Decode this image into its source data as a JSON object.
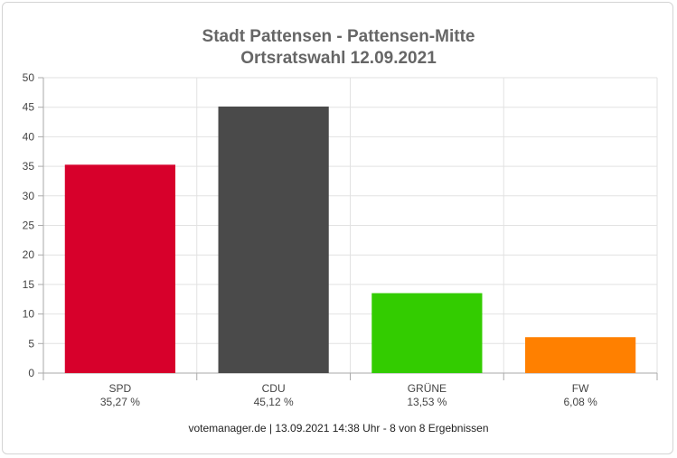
{
  "chart_data": {
    "type": "bar",
    "title": "Stadt Pattensen - Pattensen-Mitte",
    "subtitle": "Ortsratswahl 12.09.2021",
    "categories": [
      "SPD",
      "CDU",
      "GRÜNE",
      "FW"
    ],
    "value_labels": [
      "35,27 %",
      "45,12 %",
      "13,53 %",
      "6,08 %"
    ],
    "values": [
      35.27,
      45.12,
      13.53,
      6.08
    ],
    "colors": [
      "#d7002b",
      "#4a4a4a",
      "#33cc00",
      "#ff8000"
    ],
    "ylim": [
      0,
      50
    ],
    "yticks": [
      "0",
      "5",
      "10",
      "15",
      "20",
      "25",
      "30",
      "35",
      "40",
      "45",
      "50"
    ],
    "grid": true
  },
  "footer": "votemanager.de | 13.09.2021 14:38 Uhr - 8 von 8 Ergebnissen"
}
